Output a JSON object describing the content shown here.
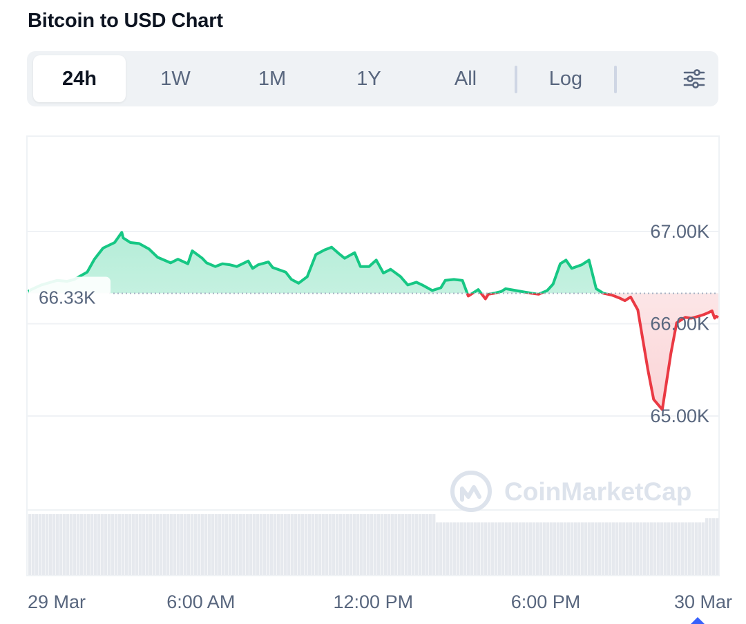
{
  "header": {
    "title": "Bitcoin to USD Chart"
  },
  "tabs": [
    {
      "label": "24h",
      "active": true
    },
    {
      "label": "1W"
    },
    {
      "label": "1M"
    },
    {
      "label": "1Y"
    },
    {
      "label": "All"
    }
  ],
  "scale_toggle": {
    "label": "Log"
  },
  "settings": {
    "icon": "sliders-icon"
  },
  "watermark": {
    "text": "CoinMarketCap"
  },
  "colors": {
    "up": "#16c784",
    "down": "#ea3943",
    "grid": "#eff2f5",
    "axis_text": "#58667e",
    "reference": "#a6b0c3",
    "volume": "#e6e9ee"
  },
  "chart_data": {
    "type": "area",
    "title": "Bitcoin to USD Chart",
    "reference_price": 66330,
    "reference_label": "66.33K",
    "y_ticks": [
      {
        "value": 67000,
        "label": "67.00K"
      },
      {
        "value": 66000,
        "label": "66.00K"
      },
      {
        "value": 65000,
        "label": "65.00K"
      }
    ],
    "x_ticks": [
      {
        "hour": 0,
        "label": "29 Mar"
      },
      {
        "hour": 6,
        "label": "6:00 AM"
      },
      {
        "hour": 12,
        "label": "12:00 PM"
      },
      {
        "hour": 18,
        "label": "6:00 PM"
      },
      {
        "hour": 24,
        "label": "30 Mar"
      }
    ],
    "x_range_hours": [
      0,
      24
    ],
    "grid": true,
    "series": [
      {
        "x_hours": [
          0,
          0.1,
          0.45,
          1.0,
          1.35,
          1.6,
          2.05,
          2.3,
          2.6,
          3.0,
          3.25,
          3.3,
          3.55,
          3.85,
          4.2,
          4.5,
          4.95,
          5.2,
          5.55,
          5.7,
          6.05,
          6.2,
          6.5,
          6.75,
          7.0,
          7.25,
          7.65,
          7.8,
          8.0,
          8.35,
          8.5,
          8.95,
          9.15,
          9.4,
          9.7,
          10.0,
          10.3,
          10.55,
          10.8,
          11.0,
          11.35,
          11.55,
          11.85,
          12.1,
          12.35,
          12.6,
          12.95,
          13.2,
          13.5,
          13.7,
          14.05,
          14.35,
          14.5,
          14.8,
          15.1,
          15.3,
          15.65,
          15.9,
          16.0,
          16.2,
          16.45,
          16.6,
          16.95,
          17.15,
          17.5,
          17.75,
          18.05,
          18.25,
          18.5,
          18.7,
          18.9,
          19.25,
          19.5,
          19.75,
          20.0,
          20.3,
          20.55,
          20.75,
          20.95,
          21.2,
          21.55,
          21.75,
          22.05,
          22.35,
          22.55,
          22.85,
          23.05,
          23.3,
          23.5,
          23.65,
          23.78,
          23.87,
          23.92,
          24.0
        ],
        "values": [
          66350,
          66370,
          66420,
          66470,
          66460,
          66480,
          66560,
          66700,
          66820,
          66880,
          66990,
          66930,
          66880,
          66870,
          66810,
          66720,
          66660,
          66700,
          66650,
          66790,
          66710,
          66660,
          66620,
          66650,
          66640,
          66620,
          66680,
          66600,
          66640,
          66670,
          66610,
          66560,
          66480,
          66440,
          66510,
          66750,
          66800,
          66830,
          66760,
          66710,
          66770,
          66620,
          66620,
          66690,
          66550,
          66590,
          66510,
          66420,
          66450,
          66420,
          66360,
          66390,
          66470,
          66480,
          66470,
          66300,
          66370,
          66270,
          66320,
          66330,
          66350,
          66380,
          66360,
          66350,
          66330,
          66320,
          66360,
          66430,
          66650,
          66690,
          66600,
          66640,
          66690,
          66380,
          66330,
          66310,
          66280,
          66250,
          66290,
          66150,
          65500,
          65180,
          65070,
          65680,
          66010,
          66070,
          66060,
          66080,
          66100,
          66120,
          66140,
          66060,
          66080,
          66070
        ]
      }
    ]
  }
}
